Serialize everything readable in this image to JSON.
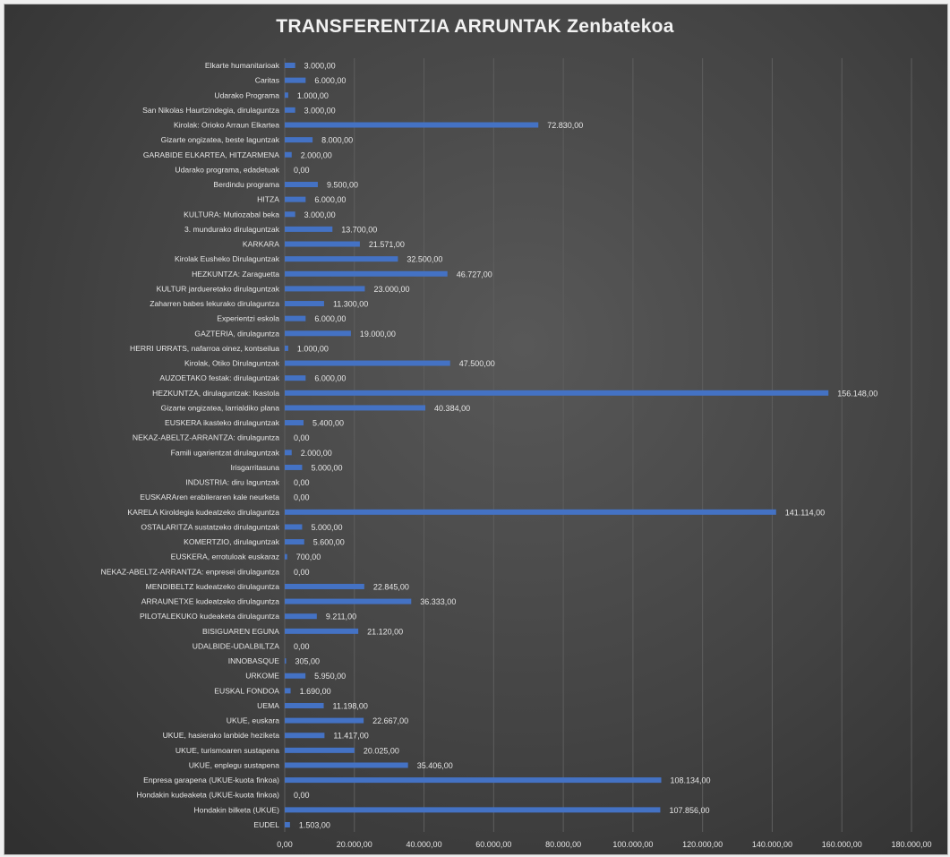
{
  "chart_data": {
    "type": "bar",
    "orientation": "horizontal",
    "title": "TRANSFERENTZIA ARRUNTAK Zenbatekoa",
    "xlabel": "",
    "ylabel": "",
    "xlim": [
      0,
      180000
    ],
    "grid": "vertical",
    "legend": "none",
    "colors": {
      "bar": "#4472c4",
      "background": "#404040",
      "text": "#e6e6e6",
      "grid": "#5e5e5e"
    },
    "tick_labels": [
      "0,00",
      "20.000,00",
      "40.000,00",
      "60.000,00",
      "80.000,00",
      "100.000,00",
      "120.000,00",
      "140.000,00",
      "160.000,00",
      "180.000,00"
    ],
    "categories": [
      "Elkarte humanitarioak",
      "Caritas",
      "Udarako Programa",
      "San Nikolas Haurtzindegia, dirulaguntza",
      "Kirolak: Orioko Arraun Elkartea",
      "Gizarte ongizatea, beste laguntzak",
      "GARABIDE ELKARTEA, HITZARMENA",
      "Udarako programa, edadetuak",
      "Berdindu programa",
      "HITZA",
      "KULTURA: Mutiozabal beka",
      "3. mundurako dirulaguntzak",
      "KARKARA",
      "Kirolak Eusheko Dirulaguntzak",
      "HEZKUNTZA: Zaraguetta",
      "KULTUR jardueretako dirulaguntzak",
      "Zaharren babes lekurako dirulaguntza",
      "Experientzi eskola",
      "GAZTERIA, dirulaguntza",
      "HERRI URRATS, nafarroa oinez, kontseilua",
      "Kirolak, Otiko Dirulaguntzak",
      "AUZOETAKO festak: dirulaguntzak",
      "HEZKUNTZA, dirulaguntzak: Ikastola",
      "Gizarte ongizatea, larrialdiko plana",
      "EUSKERA ikasteko dirulaguntzak",
      "NEKAZ-ABELTZ-ARRANTZA: dirulaguntza",
      "Famili ugarientzat dirulaguntzak",
      "Irisgarritasuna",
      "INDUSTRIA: diru laguntzak",
      "EUSKARAren erabileraren kale neurketa",
      "KARELA Kiroldegia kudeatzeko dirulaguntza",
      "OSTALARITZA sustatzeko dirulaguntzak",
      "KOMERTZIO, dirulaguntzak",
      "EUSKERA, errotuloak euskaraz",
      "NEKAZ-ABELTZ-ARRANTZA: enpresei dirulaguntza",
      "MENDIBELTZ kudeatzeko dirulaguntza",
      "ARRAUNETXE kudeatzeko dirulaguntza",
      "PILOTALEKUKO kudeaketa dirulaguntza",
      "BISIGUAREN EGUNA",
      "UDALBIDE-UDALBILTZA",
      "INNOBASQUE",
      "URKOME",
      "EUSKAL FONDOA",
      "UEMA",
      "UKUE, euskara",
      "UKUE, hasierako lanbide heziketa",
      "UKUE, turismoaren sustapena",
      "UKUE, enplegu sustapena",
      "Enpresa garapena (UKUE-kuota finkoa)",
      "Hondakin kudeaketa (UKUE-kuota finkoa)",
      "Hondakin bilketa (UKUE)",
      "EUDEL"
    ],
    "values": [
      3000,
      6000,
      1000,
      3000,
      72830,
      8000,
      2000,
      0,
      9500,
      6000,
      3000,
      13700,
      21571,
      32500,
      46727,
      23000,
      11300,
      6000,
      19000,
      1000,
      47500,
      6000,
      156148,
      40384,
      5400,
      0,
      2000,
      5000,
      0,
      0,
      141114,
      5000,
      5600,
      700,
      0,
      22845,
      36333,
      9211,
      21120,
      0,
      305,
      5950,
      1690,
      11198,
      22667,
      11417,
      20025,
      35406,
      108134,
      0,
      107856,
      1503
    ],
    "data_labels": [
      "3.000,00",
      "6.000,00",
      "1.000,00",
      "3.000,00",
      "72.830,00",
      "8.000,00",
      "2.000,00",
      "0,00",
      "9.500,00",
      "6.000,00",
      "3.000,00",
      "13.700,00",
      "21.571,00",
      "32.500,00",
      "46.727,00",
      "23.000,00",
      "11.300,00",
      "6.000,00",
      "19.000,00",
      "1.000,00",
      "47.500,00",
      "6.000,00",
      "156.148,00",
      "40.384,00",
      "5.400,00",
      "0,00",
      "2.000,00",
      "5.000,00",
      "0,00",
      "0,00",
      "141.114,00",
      "5.000,00",
      "5.600,00",
      "700,00",
      "0,00",
      "22.845,00",
      "36.333,00",
      "9.211,00",
      "21.120,00",
      "0,00",
      "305,00",
      "5.950,00",
      "1.690,00",
      "11.198,00",
      "22.667,00",
      "11.417,00",
      "20.025,00",
      "35.406,00",
      "108.134,00",
      "0,00",
      "107.856,00",
      "1.503,00"
    ]
  }
}
